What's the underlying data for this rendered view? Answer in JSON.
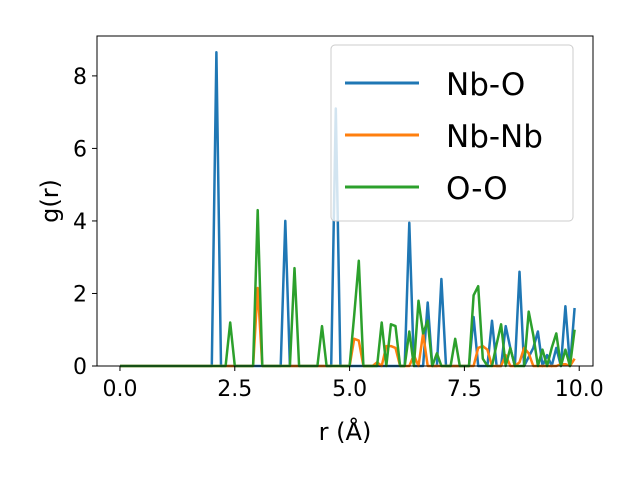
{
  "chart_data": {
    "type": "line",
    "xlabel": "r (Å)",
    "ylabel": "g(r)",
    "xlim": [
      -0.5,
      10.3
    ],
    "ylim": [
      0,
      9.1
    ],
    "xticks": [
      "0.0",
      "2.5",
      "5.0",
      "7.5",
      "10.0"
    ],
    "xtick_values": [
      0,
      2.5,
      5,
      7.5,
      10
    ],
    "yticks": [
      "0",
      "2",
      "4",
      "6",
      "8"
    ],
    "ytick_values": [
      0,
      2,
      4,
      6,
      8
    ],
    "grid": false,
    "legend_position": "top-right",
    "series": [
      {
        "name": "Nb-O",
        "color": "#1f77b4",
        "x": [
          0,
          2.0,
          2.1,
          2.2,
          3.5,
          3.6,
          3.7,
          4.6,
          4.7,
          4.8,
          6.2,
          6.3,
          6.4,
          6.6,
          6.7,
          6.8,
          6.9,
          7.0,
          7.1,
          7.6,
          7.7,
          7.8,
          8.0,
          8.1,
          8.2,
          8.3,
          8.4,
          8.5,
          8.6,
          8.7,
          8.8,
          9.0,
          9.1,
          9.2,
          9.3,
          9.4,
          9.5,
          9.6,
          9.7,
          9.8,
          9.9
        ],
        "y": [
          0,
          0,
          8.65,
          0,
          0,
          4.0,
          0,
          0,
          7.1,
          0,
          0,
          3.95,
          0,
          0,
          1.75,
          0,
          0,
          2.4,
          0,
          0,
          1.35,
          0,
          0,
          1.25,
          0,
          0,
          1.1,
          0.5,
          0,
          2.6,
          0,
          0.5,
          0.95,
          0,
          0.3,
          0,
          0.5,
          0,
          1.65,
          0,
          1.6
        ]
      },
      {
        "name": "Nb-Nb",
        "color": "#ff7f0e",
        "x": [
          0,
          2.9,
          3.0,
          3.1,
          5.0,
          5.1,
          5.2,
          5.3,
          5.5,
          5.6,
          5.7,
          5.8,
          5.9,
          6.0,
          6.1,
          6.3,
          6.4,
          6.5,
          6.6,
          6.7,
          6.8,
          7.7,
          7.8,
          7.9,
          8.0,
          8.1,
          8.3,
          8.4,
          8.5,
          8.6,
          8.7,
          8.8,
          8.9,
          9.0,
          9.1,
          9.5,
          9.6,
          9.7,
          9.8,
          9.9
        ],
        "y": [
          0,
          0,
          2.15,
          0,
          0,
          0.75,
          0.7,
          0,
          0,
          0.1,
          0,
          0.55,
          0.55,
          0.5,
          0,
          0,
          0.3,
          0,
          0.9,
          0,
          0,
          0,
          0.5,
          0.55,
          0.45,
          0,
          0,
          0.3,
          0,
          0,
          0.1,
          0.5,
          0.35,
          0,
          0,
          0,
          0.05,
          0.05,
          0,
          0.2
        ]
      },
      {
        "name": "O-O",
        "color": "#2ca02c",
        "x": [
          0,
          2.3,
          2.4,
          2.5,
          2.9,
          3.0,
          3.1,
          3.7,
          3.8,
          3.9,
          4.3,
          4.4,
          4.5,
          5.0,
          5.1,
          5.2,
          5.3,
          5.6,
          5.7,
          5.8,
          5.9,
          6.0,
          6.1,
          6.2,
          6.3,
          6.4,
          6.5,
          6.6,
          6.7,
          6.8,
          6.9,
          7.0,
          7.1,
          7.2,
          7.3,
          7.4,
          7.5,
          7.6,
          7.7,
          7.8,
          7.9,
          8.0,
          8.1,
          8.2,
          8.3,
          8.4,
          8.5,
          8.6,
          8.7,
          8.8,
          8.9,
          9.0,
          9.1,
          9.2,
          9.3,
          9.4,
          9.5,
          9.6,
          9.7,
          9.8,
          9.9
        ],
        "y": [
          0,
          0,
          1.2,
          0,
          0,
          4.3,
          0,
          0,
          2.7,
          0,
          0,
          1.1,
          0,
          0,
          1.4,
          2.9,
          0,
          0,
          1.2,
          0,
          1.15,
          1.1,
          0,
          0,
          0.95,
          0,
          1.8,
          0.9,
          1.25,
          0,
          0.35,
          0,
          0,
          0,
          0.75,
          0,
          0,
          0,
          1.95,
          2.2,
          0.2,
          0,
          0,
          0.6,
          1.15,
          0,
          0.5,
          0,
          0,
          0,
          1.5,
          0.85,
          0,
          0.45,
          0,
          0.5,
          0.9,
          0,
          0.45,
          0,
          1.0
        ]
      }
    ]
  }
}
